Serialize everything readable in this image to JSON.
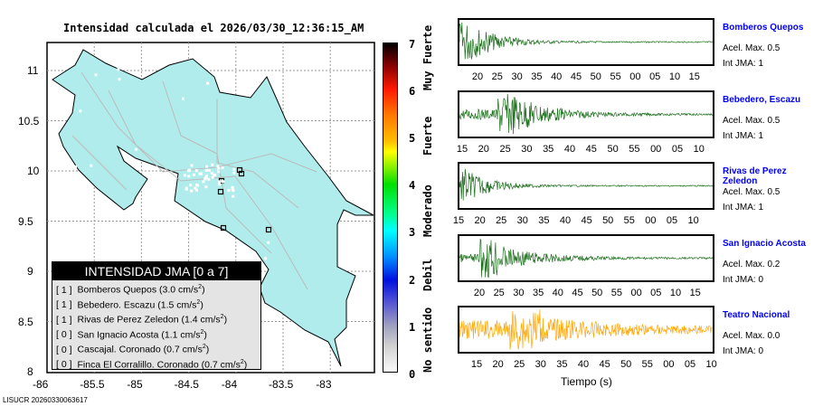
{
  "title": "Intensidad calculada el 2026/03/30_12:36:15_AM",
  "map": {
    "lon_ticks": [
      "-86",
      "-85.5",
      "-85",
      "-84.5",
      "-84",
      "-83.5",
      "-83"
    ],
    "lat_ticks": [
      "11",
      "10.5",
      "10",
      "9.5",
      "9",
      "8.5",
      "8"
    ],
    "land_color": "#b0ecec"
  },
  "legend": {
    "header": "INTENSIDAD JMA [0 a 7]",
    "rows": [
      {
        "jma": "[ 1 ]",
        "text": "Bomberos Quepos (3.0 cm/s",
        "sup": "2",
        ")": ")"
      },
      {
        "jma": "[ 1 ]",
        "text": "Bebedero. Escazu (1.5 cm/s",
        "sup": "2"
      },
      {
        "jma": "[ 1 ]",
        "text": "Rivas de Perez Zeledon (1.4 cm/s",
        "sup": "2"
      },
      {
        "jma": "[ 0 ]",
        "text": "San Ignacio Acosta (1.1 cm/s",
        "sup": "2"
      },
      {
        "jma": "[ 0 ]",
        "text": "Cascajal. Coronado (0.7 cm/s",
        "sup": "2"
      },
      {
        "jma": "[ 0 ]",
        "text": "Finca El Corralillo. Coronado (0.7 cm/s",
        "sup": "2"
      }
    ],
    "close": ")"
  },
  "colorbar": {
    "values": [
      "7",
      "6",
      "5",
      "4",
      "3",
      "2",
      "1",
      "0"
    ],
    "words": [
      "Muy Fuerte",
      "Fuerte",
      "Moderado",
      "Debil",
      "No sentido"
    ]
  },
  "traces": [
    {
      "name": "Bomberos Quepos",
      "acel": "Acel. Max. 0.5",
      "jma": "Int JMA: 1",
      "color": "#1a6e1a",
      "ticks": [
        "20",
        "25",
        "30",
        "35",
        "40",
        "45",
        "50",
        "55",
        "00",
        "05",
        "10",
        "15"
      ]
    },
    {
      "name": "Bebedero, Escazu",
      "acel": "Acel. Max. 0.5",
      "jma": "Int JMA: 1",
      "color": "#1a6e1a",
      "ticks": [
        "15",
        "20",
        "25",
        "30",
        "35",
        "40",
        "45",
        "50",
        "55",
        "00",
        "05",
        "10"
      ]
    },
    {
      "name": "Rivas de Perez Zeledon",
      "acel": "Acel. Max. 0.5",
      "jma": "Int JMA: 1",
      "color": "#1a6e1a",
      "ticks": [
        "15",
        "20",
        "25",
        "30",
        "35",
        "40",
        "45",
        "50",
        "55",
        "00",
        "05",
        "10"
      ]
    },
    {
      "name": "San Ignacio Acosta",
      "acel": "Acel. Max. 0.2",
      "jma": "Int JMA: 0",
      "color": "#1a6e1a",
      "ticks": [
        "20",
        "25",
        "30",
        "35",
        "40",
        "45",
        "50",
        "55",
        "00",
        "05",
        "10",
        "15"
      ]
    },
    {
      "name": "Teatro Nacional",
      "acel": "Acel. Max. 0.0",
      "jma": "Int JMA: 0",
      "color": "#ffa500",
      "ticks": [
        "15",
        "20",
        "25",
        "30",
        "35",
        "40",
        "45",
        "50",
        "55",
        "00",
        "05",
        "10"
      ]
    }
  ],
  "xlabel": "Tiempo (s)",
  "footer": "LISUCR 20260330063617"
}
